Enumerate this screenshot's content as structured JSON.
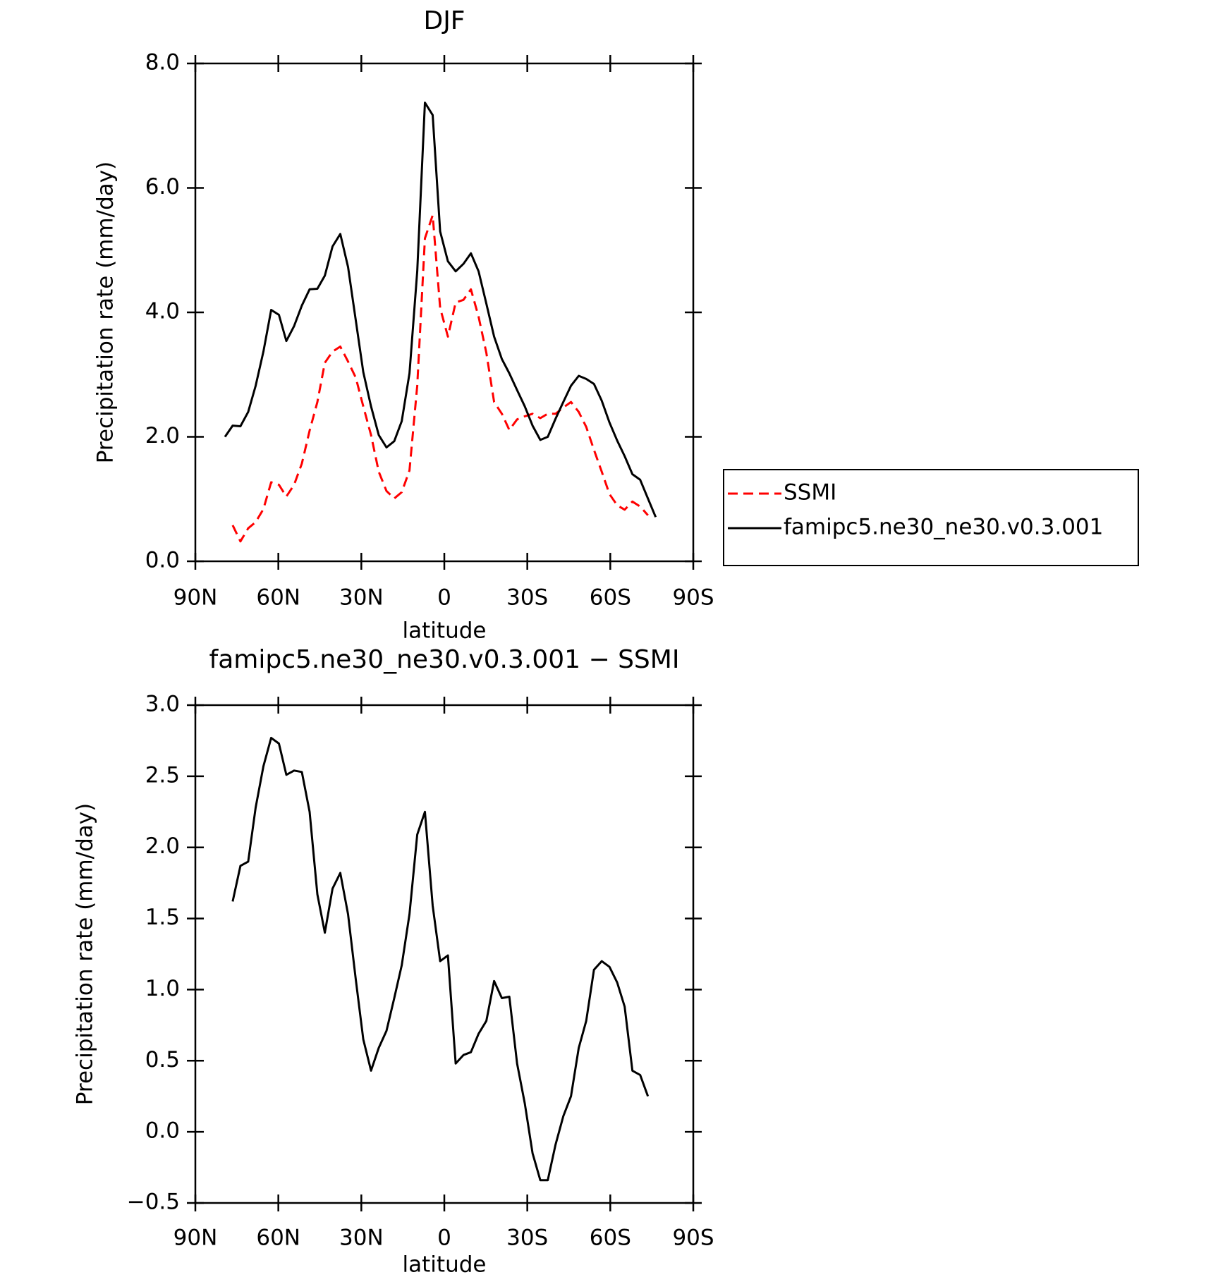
{
  "chart_data": [
    {
      "type": "line",
      "title": "DJF",
      "xlabel": "latitude",
      "ylabel": "Precipitation rate (mm/day)",
      "xlim": [
        90,
        -90
      ],
      "xticks": [
        {
          "value": 90,
          "label": "90N"
        },
        {
          "value": 60,
          "label": "60N"
        },
        {
          "value": 30,
          "label": "30N"
        },
        0,
        {
          "value": -30,
          "label": "30S"
        },
        {
          "value": -60,
          "label": "60S"
        },
        {
          "value": -90,
          "label": "90S"
        }
      ],
      "ylim": [
        0,
        8
      ],
      "yticks": [
        {
          "value": 0,
          "label": "0.0"
        },
        {
          "value": 2,
          "label": "2.0"
        },
        {
          "value": 4,
          "label": "4.0"
        },
        {
          "value": 6,
          "label": "6.0"
        },
        {
          "value": 8,
          "label": "8.0"
        }
      ],
      "legend": "right",
      "x": [
        79.3,
        76.5,
        73.7,
        70.9,
        68.2,
        65.4,
        62.6,
        59.8,
        57.1,
        54.3,
        51.5,
        48.7,
        45.9,
        43.2,
        40.4,
        37.6,
        34.8,
        32.0,
        29.3,
        26.5,
        23.7,
        20.9,
        18.1,
        15.4,
        12.6,
        9.8,
        7.0,
        4.2,
        1.5,
        -1.3,
        -4.1,
        -6.9,
        -9.6,
        -12.4,
        -15.2,
        -18.0,
        -20.8,
        -23.5,
        -26.3,
        -29.1,
        -31.9,
        -34.7,
        -37.4,
        -40.2,
        -43.0,
        -45.8,
        -48.6,
        -51.3,
        -54.1,
        -56.9,
        -59.7,
        -62.5,
        -65.2,
        -68.0,
        -70.8,
        -73.6,
        -76.4
      ],
      "series": [
        {
          "name": "SSMI",
          "color": "#ff0000",
          "line_style": "dashed",
          "values": [
            null,
            0.58,
            0.32,
            0.53,
            0.63,
            0.84,
            1.27,
            1.23,
            1.04,
            1.23,
            1.57,
            2.1,
            2.56,
            3.19,
            3.37,
            3.45,
            3.21,
            2.95,
            2.49,
            2.03,
            1.44,
            1.13,
            1.01,
            1.11,
            1.46,
            2.82,
            5.19,
            5.56,
            4.07,
            3.61,
            4.16,
            4.2,
            4.37,
            3.93,
            3.35,
            2.56,
            2.37,
            2.11,
            2.28,
            2.33,
            2.37,
            2.3,
            2.37,
            2.37,
            2.47,
            2.56,
            2.4,
            2.16,
            1.79,
            1.44,
            1.08,
            0.9,
            0.83,
            0.96,
            0.88,
            0.74,
            null
          ]
        },
        {
          "name": "famipc5.ne30_ne30.v0.3.001",
          "color": "#000000",
          "line_style": "solid",
          "values": [
            2.0,
            2.18,
            2.17,
            2.4,
            2.82,
            3.37,
            4.04,
            3.96,
            3.54,
            3.78,
            4.11,
            4.37,
            4.38,
            4.59,
            5.06,
            5.26,
            4.73,
            3.87,
            3.04,
            2.49,
            2.03,
            1.83,
            1.93,
            2.25,
            3.02,
            4.66,
            7.37,
            7.17,
            5.3,
            4.82,
            4.66,
            4.78,
            4.95,
            4.66,
            4.14,
            3.61,
            3.25,
            3.02,
            2.75,
            2.49,
            2.18,
            1.95,
            2.0,
            2.29,
            2.56,
            2.82,
            2.98,
            2.93,
            2.85,
            2.58,
            2.23,
            1.94,
            1.69,
            1.4,
            1.31,
            1.01,
            0.71
          ]
        }
      ]
    },
    {
      "type": "line",
      "title": "famipc5.ne30_ne30.v0.3.001 − SSMI",
      "xlabel": "latitude",
      "ylabel": "Precipitation rate (mm/day)",
      "xlim": [
        90,
        -90
      ],
      "xticks": [
        {
          "value": 90,
          "label": "90N"
        },
        {
          "value": 60,
          "label": "60N"
        },
        {
          "value": 30,
          "label": "30N"
        },
        0,
        {
          "value": -30,
          "label": "30S"
        },
        {
          "value": -60,
          "label": "60S"
        },
        {
          "value": -90,
          "label": "90S"
        }
      ],
      "ylim": [
        -0.5,
        3
      ],
      "yticks": [
        {
          "value": -0.5,
          "label": "−0.5"
        },
        {
          "value": 0,
          "label": "0.0"
        },
        0.5,
        {
          "value": 1,
          "label": "1.0"
        },
        1.5,
        {
          "value": 2,
          "label": "2.0"
        },
        2.5,
        {
          "value": 3,
          "label": "3.0"
        }
      ],
      "x": [
        79.3,
        76.5,
        73.7,
        70.9,
        68.2,
        65.4,
        62.6,
        59.8,
        57.1,
        54.3,
        51.5,
        48.7,
        45.9,
        43.2,
        40.4,
        37.6,
        34.8,
        32.0,
        29.3,
        26.5,
        23.7,
        20.9,
        18.1,
        15.4,
        12.6,
        9.8,
        7.0,
        4.2,
        1.5,
        -1.3,
        -4.1,
        -6.9,
        -9.6,
        -12.4,
        -15.2,
        -18.0,
        -20.8,
        -23.5,
        -26.3,
        -29.1,
        -31.9,
        -34.7,
        -37.4,
        -40.2,
        -43.0,
        -45.8,
        -48.6,
        -51.3,
        -54.1,
        -56.9,
        -59.7,
        -62.5,
        -65.2,
        -68.0,
        -70.8,
        -73.6,
        -76.4
      ],
      "series": [
        {
          "color": "#000000",
          "line_style": "solid",
          "values": [
            null,
            1.62,
            1.87,
            1.9,
            2.28,
            2.57,
            2.77,
            2.73,
            2.51,
            2.54,
            2.53,
            2.25,
            1.67,
            1.4,
            1.71,
            1.82,
            1.53,
            1.07,
            0.65,
            0.43,
            0.59,
            0.71,
            0.94,
            1.17,
            1.53,
            2.09,
            2.25,
            1.59,
            1.2,
            1.24,
            0.48,
            0.54,
            0.56,
            0.69,
            0.78,
            1.06,
            0.94,
            0.95,
            0.48,
            0.2,
            -0.15,
            -0.34,
            -0.34,
            -0.09,
            0.11,
            0.25,
            0.59,
            0.78,
            1.14,
            1.2,
            1.16,
            1.05,
            0.88,
            0.43,
            0.4,
            0.25,
            null
          ]
        }
      ]
    }
  ]
}
